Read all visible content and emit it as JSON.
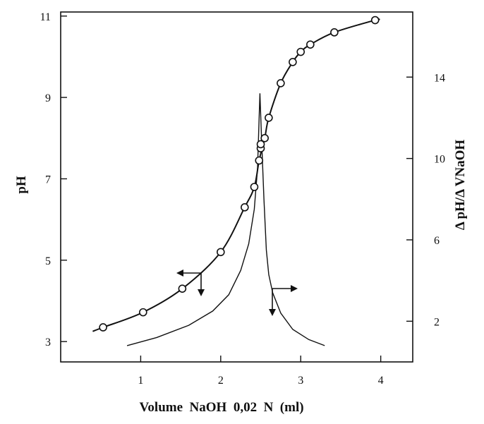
{
  "chart_data": {
    "type": "line",
    "xlabel": "Volume  NaOH  0,02  N  (ml)",
    "ylabel_left": "pH",
    "ylabel_right": "Δ pH/Δ VNaOH",
    "xlim": [
      0,
      4.4
    ],
    "ylim_left": [
      2.5,
      11.1
    ],
    "ylim_right": [
      0,
      17.2
    ],
    "x_ticks": [
      1,
      2,
      3,
      4
    ],
    "y_left_ticks": [
      3,
      5,
      7,
      9,
      11
    ],
    "y_right_ticks": [
      2,
      6,
      10,
      14
    ],
    "series": [
      {
        "axis": "left",
        "markers": "open-circle",
        "x": [
          0.53,
          1.03,
          1.52,
          2.0,
          2.3,
          2.42,
          2.48,
          2.5,
          2.5,
          2.55,
          2.6,
          2.75,
          2.9,
          3.0,
          3.12,
          3.42,
          3.93
        ],
        "y": [
          3.35,
          3.72,
          4.3,
          5.2,
          6.3,
          6.8,
          7.45,
          7.75,
          7.85,
          8.0,
          8.5,
          9.35,
          9.87,
          10.12,
          10.3,
          10.6,
          10.9
        ],
        "curve_x": [
          0.4,
          0.53,
          1.03,
          1.52,
          2.0,
          2.3,
          2.42,
          2.48,
          2.55,
          2.6,
          2.75,
          2.9,
          3.0,
          3.12,
          3.42,
          3.93,
          3.97
        ],
        "curve_y": [
          3.25,
          3.35,
          3.72,
          4.3,
          5.2,
          6.3,
          6.8,
          7.45,
          8.0,
          8.5,
          9.35,
          9.87,
          10.12,
          10.3,
          10.6,
          10.9,
          10.9
        ]
      },
      {
        "axis": "right",
        "markers": "none",
        "x": [
          0.83,
          1.2,
          1.6,
          1.9,
          2.1,
          2.25,
          2.35,
          2.42,
          2.46,
          2.49,
          2.51,
          2.54,
          2.57,
          2.6,
          2.65,
          2.75,
          2.9,
          3.1,
          3.3
        ],
        "y": [
          0.8,
          1.2,
          1.8,
          2.5,
          3.3,
          4.5,
          5.8,
          7.5,
          9.5,
          13.2,
          11.0,
          8.0,
          5.5,
          4.3,
          3.4,
          2.4,
          1.6,
          1.1,
          0.8
        ]
      }
    ]
  }
}
